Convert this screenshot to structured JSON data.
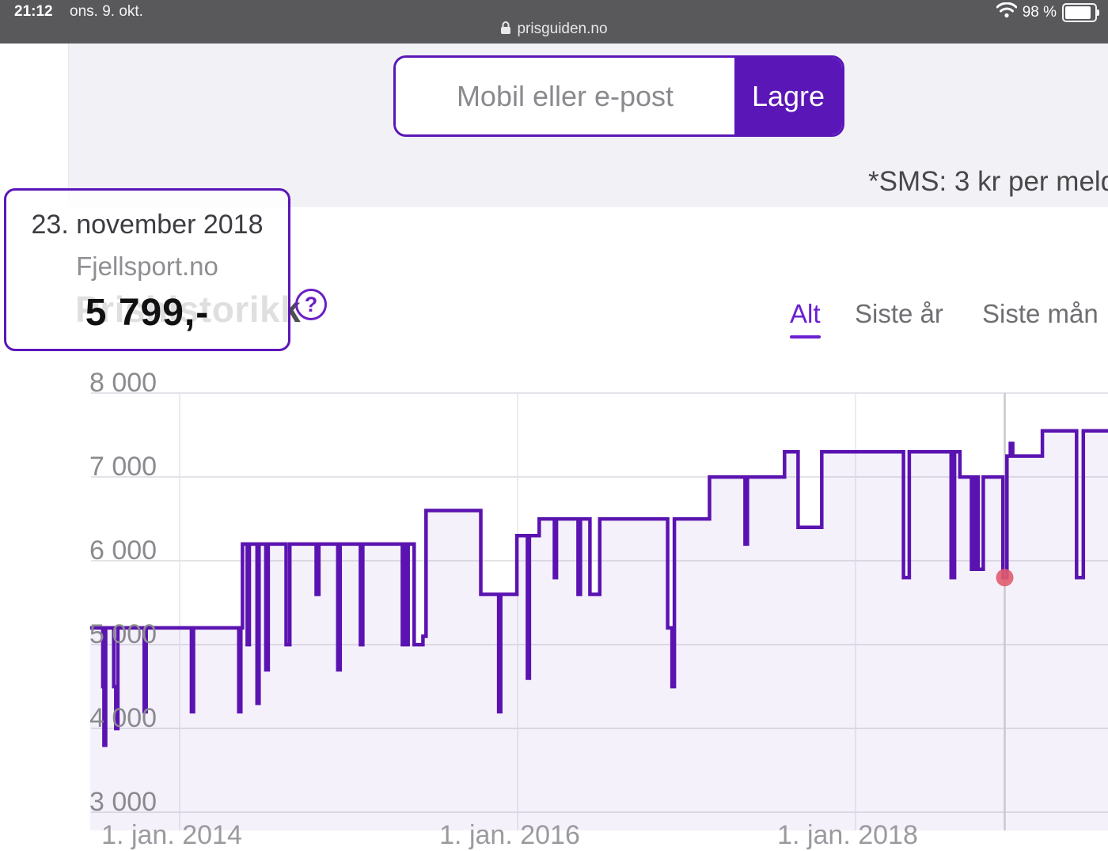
{
  "status_bar": {
    "time": "21:12",
    "date": "ons. 9. okt.",
    "battery_text": "98 %",
    "url": "prisguiden.no"
  },
  "signup": {
    "placeholder": "Mobil eller e-post",
    "save_label": "Lagre",
    "sms_note": "*SMS: 3 kr per meld"
  },
  "section": {
    "title": "Prishistorikk",
    "help_label": "?"
  },
  "tabs": [
    {
      "label": "Alt",
      "active": true
    },
    {
      "label": "Siste år",
      "active": false
    },
    {
      "label": "Siste mån",
      "active": false
    }
  ],
  "tooltip": {
    "date": "23. november 2018",
    "store": "Fjellsport.no",
    "price": "5 799,-"
  },
  "colors": {
    "brand_purple": "#5b16b8",
    "line_purple": "#5a13b0",
    "area_fill": "rgba(120,60,200,0.07)",
    "active_tab_purple": "#6a1fd0",
    "marker_red": "#e05c6e",
    "hover_line_gray": "#c9c9cd",
    "gridline_gray": "#e4e3e8"
  },
  "chart_data": {
    "type": "area",
    "title": "Prishistorikk",
    "subtitle": "",
    "xlabel": "",
    "ylabel": "",
    "legend": "none",
    "grid": true,
    "x_range": [
      2013.47,
      2019.52
    ],
    "ylim": [
      3000,
      8000
    ],
    "y_ticks": [
      {
        "value": 8000,
        "label": "8 000"
      },
      {
        "value": 7000,
        "label": "7 000"
      },
      {
        "value": 6000,
        "label": "6 000"
      },
      {
        "value": 5000,
        "label": "5 000"
      },
      {
        "value": 4000,
        "label": "4 000"
      },
      {
        "value": 3000,
        "label": "3 000"
      }
    ],
    "x_ticks": [
      {
        "value": 2014,
        "label": "1. jan. 2014"
      },
      {
        "value": 2016,
        "label": "1. jan. 2016"
      },
      {
        "value": 2018,
        "label": "1. jan. 2018"
      }
    ],
    "series": [
      {
        "name": "Fjellsport.no",
        "step": "after",
        "points": [
          [
            2013.47,
            5199
          ],
          [
            2013.545,
            4499
          ],
          [
            2013.552,
            3799
          ],
          [
            2013.562,
            5199
          ],
          [
            2013.61,
            4499
          ],
          [
            2013.622,
            3999
          ],
          [
            2013.634,
            5199
          ],
          [
            2013.79,
            4199
          ],
          [
            2013.802,
            5199
          ],
          [
            2014.07,
            4199
          ],
          [
            2014.082,
            5199
          ],
          [
            2014.35,
            4199
          ],
          [
            2014.362,
            5199
          ],
          [
            2014.372,
            6199
          ],
          [
            2014.4,
            4999
          ],
          [
            2014.412,
            6199
          ],
          [
            2014.458,
            4299
          ],
          [
            2014.47,
            6199
          ],
          [
            2014.51,
            4699
          ],
          [
            2014.524,
            6199
          ],
          [
            2014.63,
            4999
          ],
          [
            2014.652,
            6199
          ],
          [
            2014.808,
            5599
          ],
          [
            2014.824,
            6199
          ],
          [
            2014.936,
            4699
          ],
          [
            2014.95,
            6199
          ],
          [
            2015.07,
            4999
          ],
          [
            2015.084,
            6199
          ],
          [
            2015.318,
            4999
          ],
          [
            2015.33,
            6199
          ],
          [
            2015.34,
            4999
          ],
          [
            2015.352,
            6199
          ],
          [
            2015.388,
            4999
          ],
          [
            2015.44,
            5099
          ],
          [
            2015.458,
            6599
          ],
          [
            2015.782,
            5599
          ],
          [
            2015.888,
            4199
          ],
          [
            2015.9,
            5599
          ],
          [
            2015.996,
            6299
          ],
          [
            2016.058,
            4599
          ],
          [
            2016.07,
            6299
          ],
          [
            2016.128,
            6499
          ],
          [
            2016.218,
            5799
          ],
          [
            2016.23,
            6499
          ],
          [
            2016.358,
            5599
          ],
          [
            2016.372,
            6499
          ],
          [
            2016.428,
            5599
          ],
          [
            2016.486,
            6499
          ],
          [
            2016.888,
            5199
          ],
          [
            2016.914,
            4499
          ],
          [
            2016.928,
            6499
          ],
          [
            2017.136,
            6999
          ],
          [
            2017.346,
            6199
          ],
          [
            2017.36,
            6999
          ],
          [
            2017.58,
            7299
          ],
          [
            2017.66,
            6399
          ],
          [
            2017.8,
            7299
          ],
          [
            2018.284,
            5799
          ],
          [
            2018.318,
            7299
          ],
          [
            2018.566,
            5799
          ],
          [
            2018.586,
            7299
          ],
          [
            2018.618,
            6999
          ],
          [
            2018.686,
            5899
          ],
          [
            2018.706,
            6999
          ],
          [
            2018.726,
            5899
          ],
          [
            2018.756,
            6999
          ],
          [
            2018.872,
            5799
          ],
          [
            2018.896,
            7249
          ],
          [
            2018.916,
            7399
          ],
          [
            2018.93,
            7249
          ],
          [
            2019.106,
            7549
          ],
          [
            2019.308,
            5799
          ],
          [
            2019.348,
            7549
          ],
          [
            2019.515,
            7549
          ]
        ]
      }
    ],
    "marker": {
      "x": 2018.883,
      "y": 5799,
      "store": "Fjellsport.no",
      "date": "23. november 2018",
      "price": "5 799,-"
    },
    "hover_line_x": 2018.883
  }
}
